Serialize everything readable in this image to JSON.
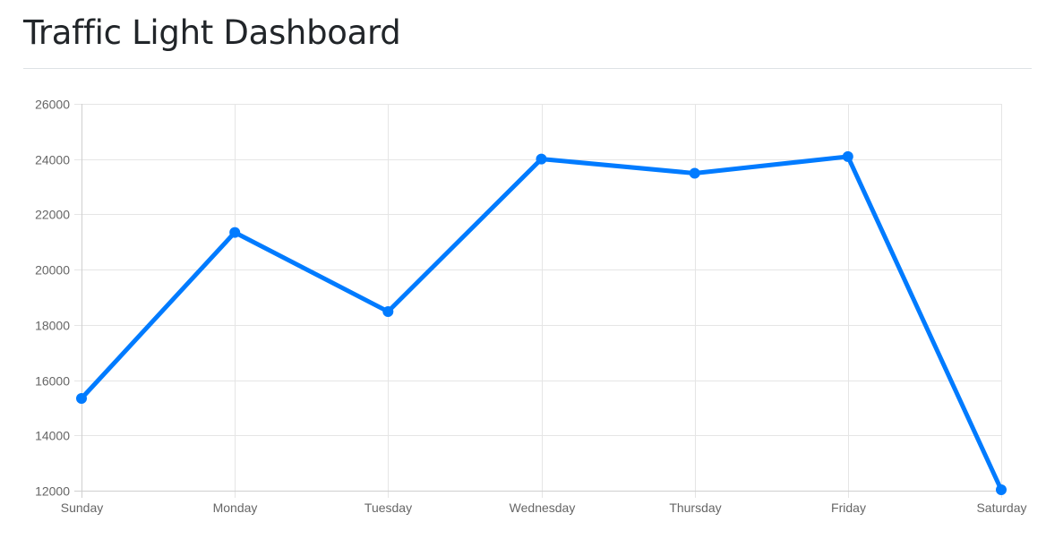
{
  "header": {
    "title": "Traffic Light Dashboard"
  },
  "chart_data": {
    "type": "line",
    "categories": [
      "Sunday",
      "Monday",
      "Tuesday",
      "Wednesday",
      "Thursday",
      "Friday",
      "Saturday"
    ],
    "series": [
      {
        "values": [
          15339,
          21345,
          18483,
          24003,
          23489,
          24092,
          12034
        ],
        "color": "#007bff"
      }
    ],
    "ylim": [
      12000,
      26000
    ],
    "yticks": [
      12000,
      14000,
      16000,
      18000,
      20000,
      22000,
      24000,
      26000
    ],
    "grid": true,
    "legend": "none"
  }
}
